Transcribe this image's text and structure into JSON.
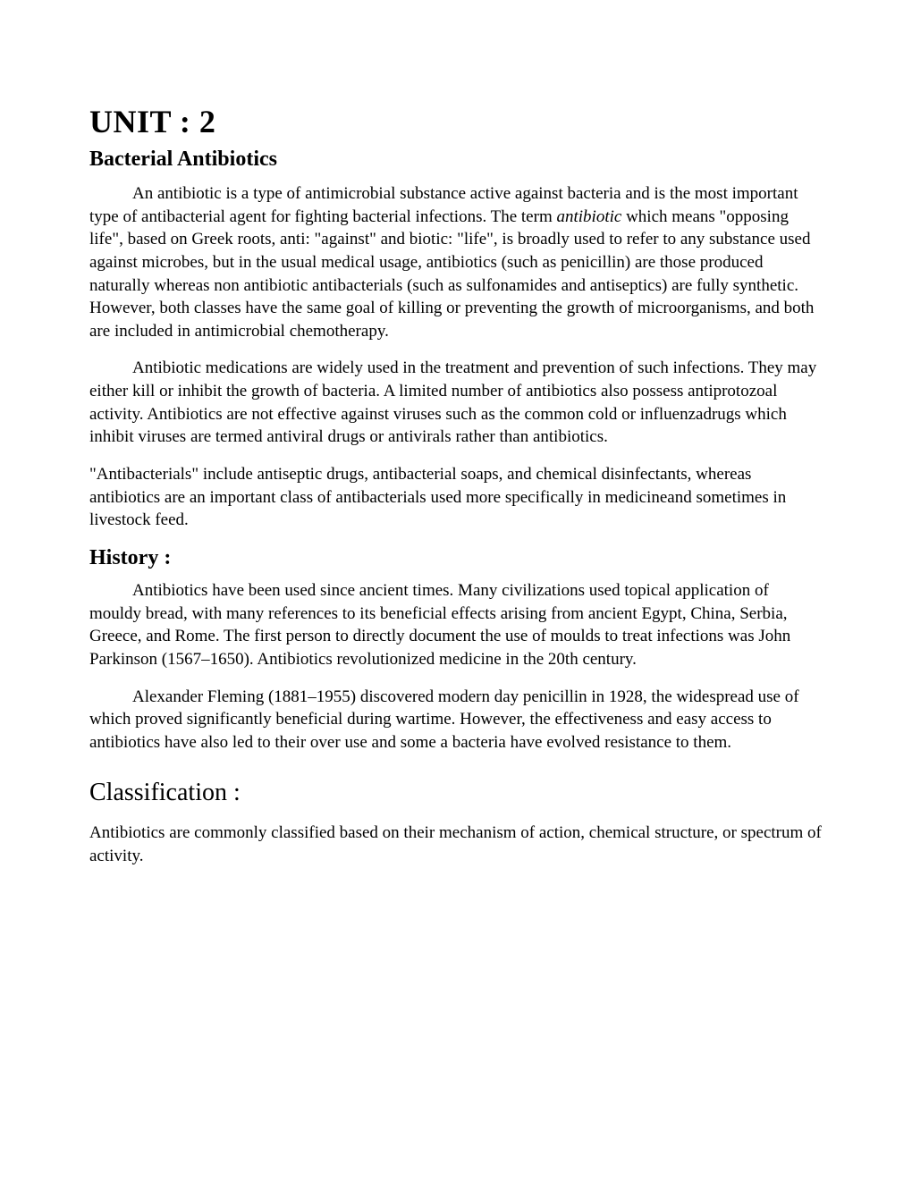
{
  "document": {
    "background_color": "#ffffff",
    "text_color": "#000000",
    "font_family": "Georgia, Times New Roman, serif",
    "title_fontsize": 36,
    "subtitle_fontsize": 24,
    "body_fontsize": 19,
    "heading_fontsize": 24,
    "classification_fontsize": 28,
    "line_height": 1.35,
    "text_indent": 48
  },
  "unit_title": "UNIT : 2",
  "subtitle": "Bacterial Antibiotics",
  "para1_pre": "An antibiotic is a type of antimicrobial substance active against bacteria and is the most important type of antibacterial agent for fighting bacterial infections. The term ",
  "para1_italic": "antibiotic",
  "para1_post": " which means \"opposing life\", based on Greek roots, anti: \"against\" and biotic: \"life\", is broadly used to refer to any substance used against microbes, but in the usual medical usage, antibiotics (such as penicillin) are those produced naturally whereas non antibiotic antibacterials (such as sulfonamides and antiseptics) are fully synthetic. However, both classes have the same goal of killing or preventing the growth of microorganisms, and both are included in antimicrobial chemotherapy.",
  "para2": "Antibiotic medications are widely used in the treatment and prevention of such infections. They may either kill or inhibit the growth of bacteria. A limited number of antibiotics also possess antiprotozoal activity. Antibiotics are not effective against viruses such as the common cold or influenzadrugs which inhibit viruses are termed antiviral drugs or antivirals rather than antibiotics.",
  "para3": "\"Antibacterials\" include antiseptic drugs, antibacterial soaps, and chemical disinfectants, whereas antibiotics are an important class of antibacterials used more specifically in medicineand sometimes in livestock feed.",
  "history_heading": "History :",
  "history_para1": "Antibiotics have been used since ancient times. Many civilizations used topical application of mouldy bread, with many references to its beneficial effects arising from ancient Egypt, China, Serbia, Greece, and Rome. The first person to directly document the use of moulds to treat infections was John Parkinson (1567–1650). Antibiotics revolutionized medicine in the 20th century.",
  "history_para2": "Alexander Fleming (1881–1955) discovered modern day penicillin in 1928, the widespread use of which proved significantly beneficial during wartime. However, the effectiveness and easy access to antibiotics have also led to their over use and some a bacteria have evolved resistance to them.",
  "classification_heading": "Classification :",
  "classification_para": "Antibiotics are commonly classified based on their mechanism of action, chemical structure, or spectrum of activity."
}
